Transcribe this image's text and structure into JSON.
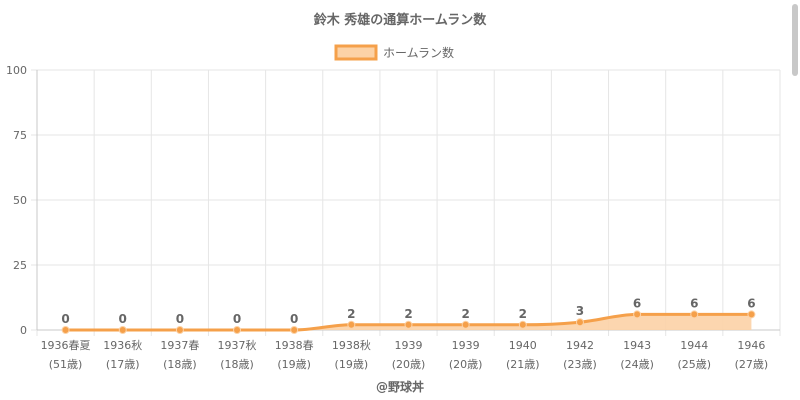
{
  "chart_data": {
    "type": "area",
    "title": "鈴木 秀雄の通算ホームラン数",
    "legend": "ホームラン数",
    "legend_position": "top",
    "categories": [
      [
        "1936春夏",
        "(51歳)"
      ],
      [
        "1936秋",
        "(17歳)"
      ],
      [
        "1937春",
        "(18歳)"
      ],
      [
        "1937秋",
        "(18歳)"
      ],
      [
        "1938春",
        "(19歳)"
      ],
      [
        "1938秋",
        "(19歳)"
      ],
      [
        "1939",
        "(20歳)"
      ],
      [
        "1939",
        "(20歳)"
      ],
      [
        "1940",
        "(21歳)"
      ],
      [
        "1942",
        "(23歳)"
      ],
      [
        "1943",
        "(24歳)"
      ],
      [
        "1944",
        "(25歳)"
      ],
      [
        "1946",
        "(27歳)"
      ]
    ],
    "series": [
      {
        "name": "ホームラン数",
        "values": [
          0,
          0,
          0,
          0,
          0,
          2,
          2,
          2,
          2,
          3,
          6,
          6,
          6
        ]
      }
    ],
    "ylim": [
      0,
      100
    ],
    "yticks": [
      0,
      25,
      50,
      75,
      100
    ],
    "grid": true,
    "colors": {
      "line": "#f5a04a",
      "fill": "#fcd2a6",
      "point": "#f5a04a",
      "grid": "#e6e6e6",
      "text": "#666666"
    }
  },
  "footer": "@野球丼"
}
